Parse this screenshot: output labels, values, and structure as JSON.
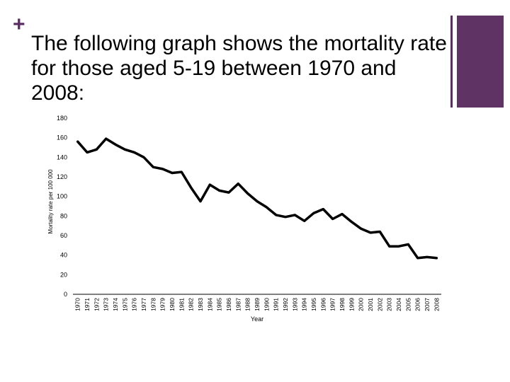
{
  "slide": {
    "bullet": "+",
    "title": "The following graph shows the mortality rate for those aged 5-19 between 1970 and 2008:"
  },
  "colors": {
    "accent": "#5f3364",
    "line": "#000000"
  },
  "chart_data": {
    "type": "line",
    "title": "",
    "xlabel": "Year",
    "ylabel": "Mortality rate per 100 000",
    "ylim": [
      0,
      180
    ],
    "yticks": [
      0,
      20,
      40,
      60,
      80,
      100,
      120,
      140,
      160,
      180
    ],
    "categories": [
      "1970",
      "1971",
      "1972",
      "1973",
      "1974",
      "1975",
      "1976",
      "1977",
      "1978",
      "1979",
      "1980",
      "1981",
      "1982",
      "1983",
      "1984",
      "1985",
      "1986",
      "1987",
      "1988",
      "1989",
      "1990",
      "1991",
      "1992",
      "1993",
      "1994",
      "1995",
      "1996",
      "1997",
      "1998",
      "1999",
      "2000",
      "2001",
      "2002",
      "2003",
      "2004",
      "2005",
      "2006",
      "2007",
      "2008"
    ],
    "series": [
      {
        "name": "Mortality rate",
        "values": [
          156,
          145,
          148,
          159,
          153,
          148,
          145,
          140,
          130,
          128,
          124,
          125,
          109,
          95,
          112,
          106,
          104,
          113,
          103,
          95,
          89,
          81,
          79,
          81,
          75,
          83,
          87,
          77,
          82,
          74,
          67,
          63,
          64,
          49,
          49,
          51,
          37,
          38,
          37
        ]
      }
    ]
  }
}
